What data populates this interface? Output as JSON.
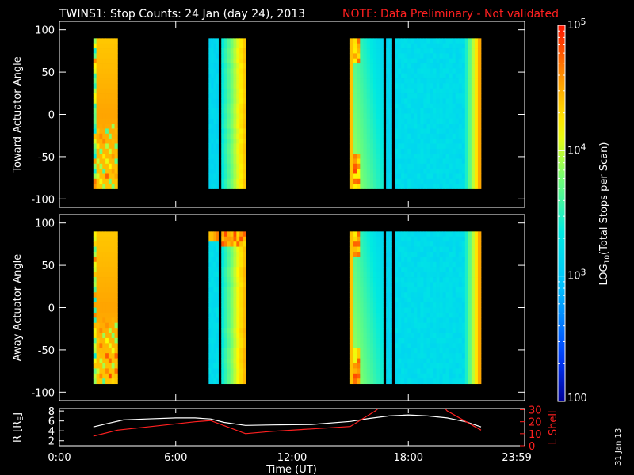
{
  "header": {
    "title": "TWINS1: Stop Counts: 24 Jan (day  24), 2013",
    "note": "NOTE: Data Preliminary - Not validated"
  },
  "footer": {
    "date_stamp": "31 Jan 13"
  },
  "colors": {
    "background": "#000000",
    "axes": "#ffffff",
    "note": "#ff2020",
    "r_line": "#ffffff",
    "l_line": "#ff2020"
  },
  "chart_data": [
    {
      "type": "heatmap",
      "name": "toward",
      "ylabel": "Toward Actuator Angle",
      "ylim": [
        -110,
        110
      ],
      "y_ticks": [
        -100,
        -50,
        0,
        50,
        100
      ],
      "y_tick_labels": [
        "-100",
        "-50",
        "0",
        "50",
        "100"
      ],
      "xlim_hours": [
        0,
        24
      ],
      "angle_range": [
        -88,
        90
      ],
      "blocks": [
        {
          "start": 1.75,
          "end": 3.0,
          "profile": "high"
        },
        {
          "start": 7.7,
          "end": 8.2,
          "profile": "low"
        },
        {
          "start": 8.35,
          "end": 9.6,
          "profile": "lowmid"
        },
        {
          "start": 15.0,
          "end": 16.7,
          "profile": "mixed"
        },
        {
          "start": 16.85,
          "end": 17.15,
          "profile": "low"
        },
        {
          "start": 17.3,
          "end": 21.75,
          "profile": "lowrise"
        }
      ]
    },
    {
      "type": "heatmap",
      "name": "away",
      "ylabel": "Away Actuator Angle",
      "ylim": [
        -110,
        110
      ],
      "y_ticks": [
        -100,
        -50,
        0,
        50,
        100
      ],
      "y_tick_labels": [
        "-100",
        "-50",
        "0",
        "50",
        "100"
      ],
      "xlim_hours": [
        0,
        24
      ],
      "angle_range": [
        -90,
        90
      ],
      "blocks": [
        {
          "start": 1.75,
          "end": 3.0,
          "profile": "high"
        },
        {
          "start": 7.7,
          "end": 8.2,
          "profile": "lowtop"
        },
        {
          "start": 8.35,
          "end": 9.6,
          "profile": "lowmidtop"
        },
        {
          "start": 15.0,
          "end": 16.7,
          "profile": "mixed"
        },
        {
          "start": 16.85,
          "end": 17.15,
          "profile": "low"
        },
        {
          "start": 17.3,
          "end": 21.75,
          "profile": "lowrise"
        }
      ]
    },
    {
      "type": "line",
      "name": "ephemeris",
      "xlabel": "Time (UT)",
      "x_tick_labels": [
        "0:00",
        "6:00",
        "12:00",
        "18:00",
        "23:59"
      ],
      "x_ticks_hours": [
        0,
        6,
        12,
        18,
        24
      ],
      "ylabel_left": "R [RE]",
      "ylabel_left_main": "R [R",
      "ylabel_left_sub": "E",
      "ylabel_left_close": "]",
      "ylim_left": [
        1,
        8.5
      ],
      "y_ticks_left": [
        2,
        4,
        6,
        8
      ],
      "y_tick_labels_left": [
        "2",
        "4",
        "6",
        "8"
      ],
      "ylabel_right": "L Shell",
      "ylim_right": [
        0,
        31
      ],
      "y_ticks_right": [
        0,
        10,
        20,
        30
      ],
      "y_tick_labels_right": [
        "0",
        "10",
        "20",
        "30"
      ],
      "series": [
        {
          "name": "R",
          "axis": "left",
          "x": [
            1.75,
            2.5,
            3.3,
            4.5,
            6.0,
            7.0,
            7.8,
            8.5,
            9.6,
            11.0,
            13.0,
            15.0,
            16.0,
            17.0,
            18.0,
            19.0,
            20.0,
            21.0,
            21.75
          ],
          "y": [
            4.8,
            5.5,
            6.2,
            6.4,
            6.6,
            6.6,
            6.4,
            5.7,
            5.1,
            5.2,
            5.3,
            5.9,
            6.5,
            7.0,
            7.2,
            7.0,
            6.6,
            5.8,
            4.8
          ]
        },
        {
          "name": "L",
          "axis": "right",
          "x": [
            1.75,
            3.0,
            7.0,
            7.8,
            9.6,
            11.0,
            13.0,
            15.0,
            16.3,
            16.45,
            19.9,
            20.0,
            21.75
          ],
          "y": [
            8,
            13,
            20,
            21,
            10,
            12,
            14,
            16,
            29,
            31,
            31,
            29,
            13
          ]
        }
      ]
    },
    {
      "type": "colorbar",
      "label": "LOG10(Total Stops per Scan)",
      "label_main": "LOG",
      "label_sub": "10",
      "label_rest": "(Total Stops per Scan)",
      "scale": "log",
      "range": [
        100,
        100000
      ],
      "ticks": [
        {
          "value": 100,
          "base": "100",
          "exp": ""
        },
        {
          "value": 1000,
          "base": "10",
          "exp": "3"
        },
        {
          "value": 10000,
          "base": "10",
          "exp": "4"
        },
        {
          "value": 100000,
          "base": "10",
          "exp": "5"
        }
      ]
    }
  ]
}
